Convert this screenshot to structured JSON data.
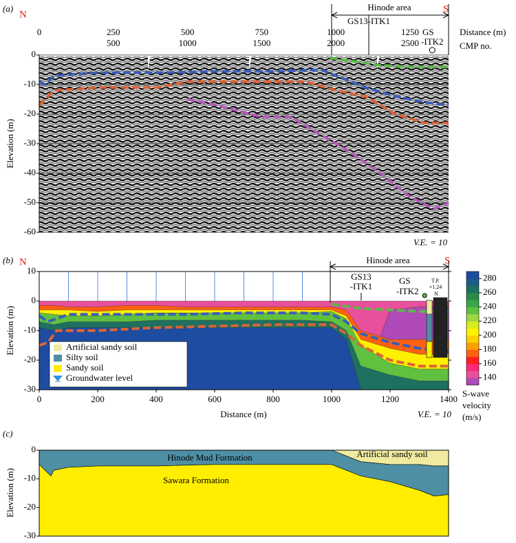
{
  "chart_data": [
    {
      "type": "line",
      "label": "(a)",
      "north": "N",
      "south": "S",
      "area": "Hinode area",
      "borehole_labels": [
        "GS13-ITK1",
        "GS",
        "-ITK2"
      ],
      "borehole_x": [
        1111,
        1325
      ],
      "xlabel": "Distance (m)",
      "x2label": "CMP no.",
      "ylabel": "Elevation (m)",
      "note": "V.E. = 10",
      "xlim": [
        0,
        1380
      ],
      "xticks": [
        0,
        250,
        500,
        750,
        1000,
        1250
      ],
      "x2lim": [
        0,
        2760
      ],
      "x2ticks": [
        500,
        1000,
        1500,
        2000,
        2500
      ],
      "ylim": [
        -60,
        0
      ],
      "yticks": [
        0,
        -10,
        -20,
        -30,
        -40,
        -50,
        -60
      ],
      "grid": true,
      "series": [
        {
          "color": "#5cb84a",
          "x": [
            980,
            1050,
            1150,
            1250,
            1380
          ],
          "values": [
            -1,
            -2,
            -3.5,
            -4,
            -4
          ]
        },
        {
          "color": "#3a5fb8",
          "x": [
            0,
            20,
            50,
            200,
            400,
            600,
            800,
            950,
            1000,
            1100,
            1200,
            1300,
            1380
          ],
          "values": [
            -9,
            -10,
            -7,
            -6,
            -6,
            -5.5,
            -5.5,
            -5,
            -7,
            -11,
            -14,
            -16,
            -17
          ]
        },
        {
          "color": "#d8643a",
          "x": [
            0,
            20,
            50,
            200,
            400,
            500,
            700,
            900,
            1000,
            1100,
            1200,
            1300,
            1380
          ],
          "values": [
            -17,
            -15,
            -12,
            -11,
            -11,
            -9,
            -9,
            -9,
            -12,
            -14,
            -20,
            -23,
            -23
          ]
        },
        {
          "color": "#b45ab8",
          "x": [
            500,
            600,
            750,
            850,
            950,
            1050,
            1150,
            1250,
            1330,
            1380
          ],
          "values": [
            -15,
            -17,
            -21,
            -21,
            -27,
            -33,
            -40,
            -48,
            -52,
            -50
          ]
        }
      ]
    },
    {
      "type": "contour",
      "label": "(b)",
      "north": "N",
      "south": "S",
      "area": "Hinode area",
      "borehole_labels": [
        "GS13",
        "-ITK1",
        "GS",
        "-ITK2"
      ],
      "borehole_x": [
        1101,
        1330
      ],
      "datum": [
        "T.P.",
        "+1.24"
      ],
      "datum_north": "N",
      "note": "V.E. = 10",
      "xlabel": "Distance (m)",
      "ylabel": "Elevation (m)",
      "xlim": [
        0,
        1400
      ],
      "xticks": [
        0,
        200,
        400,
        600,
        800,
        1000,
        1200,
        1400
      ],
      "ylim": [
        -30,
        10
      ],
      "yticks": [
        10,
        0,
        -10,
        -20,
        -30
      ],
      "x": [
        0,
        50,
        100,
        200,
        300,
        400,
        500,
        600,
        700,
        800,
        900,
        1000,
        1050,
        1100,
        1200,
        1300,
        1400
      ],
      "bands": [
        {
          "velocity": 140,
          "top": [
            0,
            0,
            0,
            0,
            0,
            0,
            0,
            0,
            0,
            0,
            0,
            0,
            0,
            0,
            0,
            0,
            0
          ]
        },
        {
          "velocity": 130,
          "top": [
            -30,
            -30,
            -30,
            -30,
            -30,
            -30,
            -30,
            -30,
            -30,
            -30,
            -30,
            -30,
            -30,
            -30,
            -3,
            -2,
            -2
          ]
        },
        {
          "velocity": 170,
          "top": [
            -1.5,
            -1.5,
            -2,
            -2,
            -1.5,
            -1.5,
            -2,
            -2,
            -2,
            -2,
            -2,
            -2,
            -3,
            -10,
            -13,
            -13,
            -13
          ]
        },
        {
          "velocity": 200,
          "top": [
            -3,
            -3,
            -3,
            -3.5,
            -3,
            -3,
            -3,
            -3,
            -3,
            -3,
            -3,
            -3,
            -5,
            -13,
            -16,
            -18,
            -18
          ]
        },
        {
          "velocity": 230,
          "top": [
            -4,
            -4.5,
            -5,
            -5,
            -4.5,
            -4,
            -4,
            -4,
            -4,
            -4,
            -4,
            -3.5,
            -6,
            -15,
            -21,
            -23,
            -23
          ]
        },
        {
          "velocity": 260,
          "top": [
            -7,
            -8,
            -7,
            -7,
            -7,
            -6.5,
            -6.5,
            -6.5,
            -6.5,
            -6.5,
            -6.5,
            -7,
            -10,
            -22,
            -25,
            -27,
            -27
          ]
        },
        {
          "velocity": 280,
          "top": [
            -9,
            -10,
            -9,
            -9,
            -9,
            -9,
            -9,
            -9,
            -9,
            -9,
            -9,
            -9,
            -13,
            -30,
            -30,
            -30,
            -30
          ]
        }
      ],
      "series": [
        {
          "color": "#3a5fb8",
          "x": [
            0,
            30,
            100,
            300,
            500,
            700,
            900,
            1000,
            1050,
            1100,
            1200,
            1300,
            1400
          ],
          "values": [
            -5,
            -7,
            -4.5,
            -4.5,
            -4.5,
            -4,
            -4,
            -4.5,
            -7,
            -11,
            -14,
            -16,
            -17
          ]
        },
        {
          "color": "#d8643a",
          "x": [
            0,
            30,
            60,
            200,
            400,
            600,
            800,
            1000,
            1050,
            1100,
            1200,
            1300,
            1400
          ],
          "values": [
            -15,
            -14,
            -10,
            -10,
            -9,
            -8.5,
            -8,
            -8,
            -11,
            -15,
            -20,
            -22,
            -22
          ]
        },
        {
          "color": "#5cb84a",
          "x": [
            1000,
            1100,
            1200,
            1300,
            1400
          ],
          "values": [
            -1,
            -2.5,
            -3,
            -3.5,
            -3.5
          ]
        }
      ],
      "legend": [
        {
          "name": "Artificial sandy soil",
          "color": "#f0eaa0"
        },
        {
          "name": "Silty soil",
          "color": "#4e8fa5"
        },
        {
          "name": "Sandy soil",
          "color": "#ffee00"
        },
        {
          "name": "Groundwater level",
          "color": "#2f8fd8"
        }
      ],
      "colorbar": {
        "label": [
          "S-wave",
          "velocity",
          "(m/s)"
        ],
        "levels": [
          130,
          140,
          150,
          160,
          170,
          180,
          190,
          200,
          210,
          220,
          230,
          240,
          250,
          260,
          270,
          280,
          290
        ],
        "colors": [
          "#b04ab8",
          "#e8509c",
          "#ff2878",
          "#ff1e1e",
          "#ff6010",
          "#ffa000",
          "#ffd000",
          "#fff000",
          "#d8ec20",
          "#9cd840",
          "#60c040",
          "#38a848",
          "#2a8a4a",
          "#1e7060",
          "#1c5c88",
          "#1e4ca0"
        ],
        "ticks": [
          140,
          160,
          180,
          200,
          220,
          240,
          260,
          280
        ]
      }
    },
    {
      "type": "area",
      "label": "(c)",
      "ylabel": "Elevation (m)",
      "xlim": [
        0,
        1400
      ],
      "ylim": [
        -30,
        0
      ],
      "yticks": [
        0,
        -10,
        -20,
        -30
      ],
      "x": [
        0,
        20,
        40,
        50,
        100,
        200,
        400,
        600,
        800,
        1000,
        1050,
        1100,
        1200,
        1300,
        1350,
        1400
      ],
      "series": [
        {
          "name": "Artificial sandy soil",
          "color": "#f0eaa0",
          "values": [
            0,
            0,
            0,
            0,
            0,
            0,
            0,
            0,
            0,
            0,
            -2,
            -4,
            -5,
            -5,
            -5.5,
            -5.5
          ]
        },
        {
          "name": "Hinode Mud Formation",
          "color": "#4e8fa5",
          "values": [
            -5,
            -7,
            -9,
            -7,
            -6,
            -5.5,
            -5.5,
            -5,
            -5,
            -5,
            -7,
            -9,
            -11,
            -14,
            -16,
            -15.5
          ]
        },
        {
          "name": "Sawara Formation",
          "color": "#ffee00",
          "values": [
            -30,
            -30,
            -30,
            -30,
            -30,
            -30,
            -30,
            -30,
            -30,
            -30,
            -30,
            -30,
            -30,
            -30,
            -30,
            -30
          ]
        }
      ]
    }
  ]
}
